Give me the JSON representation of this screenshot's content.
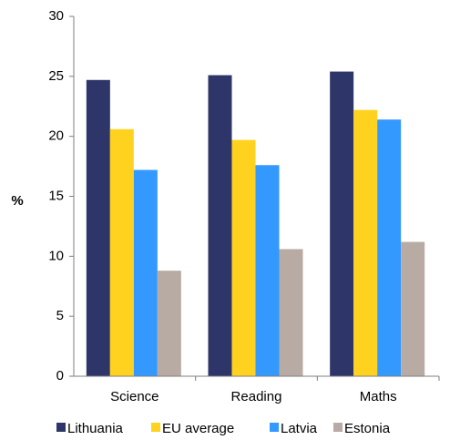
{
  "chart_data": {
    "type": "bar",
    "title": "",
    "xlabel": "",
    "ylabel": "%",
    "ylim": [
      0,
      30
    ],
    "yticks": [
      0,
      5,
      10,
      15,
      20,
      25,
      30
    ],
    "grid": false,
    "legend_position": "bottom",
    "categories": [
      "Science",
      "Reading",
      "Maths"
    ],
    "series": [
      {
        "name": "Lithuania",
        "color": "#2e3669",
        "values": [
          24.7,
          25.1,
          25.4
        ]
      },
      {
        "name": "EU average",
        "color": "#ffd21f",
        "values": [
          20.6,
          19.7,
          22.2
        ]
      },
      {
        "name": "Latvia",
        "color": "#3399ff",
        "values": [
          17.2,
          17.6,
          21.4
        ]
      },
      {
        "name": "Estonia",
        "color": "#b8aba3",
        "values": [
          8.8,
          10.6,
          11.2
        ]
      }
    ]
  }
}
